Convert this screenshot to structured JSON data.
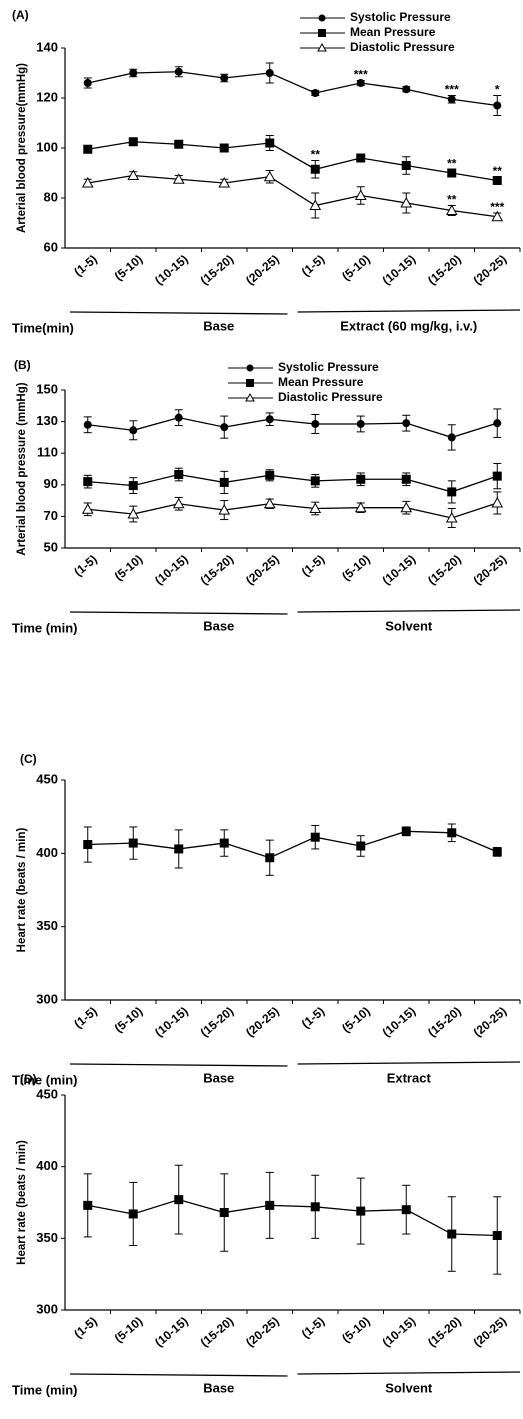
{
  "chart_data": [
    {
      "type": "line",
      "label": "(A)",
      "ylabel": "Arterial blood pressure(mmHg)",
      "categories": [
        "(1-5)",
        "(5-10)",
        "(10-15)",
        "(15-20)",
        "(20-25)",
        "(1-5)",
        "(5-10)",
        "(10-15)",
        "(15-20)",
        "(20-25)"
      ],
      "ylim": [
        60,
        140
      ],
      "yticks": [
        60,
        80,
        100,
        120,
        140
      ],
      "xlabel": "Time(min)",
      "groups": [
        "Base",
        "Extract (60 mg/kg, i.v.)"
      ],
      "series": [
        {
          "name": "Systolic Pressure",
          "color": "#000000",
          "marker": "circle",
          "values": [
            126,
            130,
            130.5,
            128,
            130,
            122,
            126,
            123.5,
            119.5,
            117
          ],
          "errors": [
            2,
            1.5,
            2,
            1.5,
            4,
            1,
            1,
            1,
            1.5,
            4
          ],
          "significance": [
            null,
            null,
            null,
            null,
            null,
            null,
            "***",
            null,
            "***",
            "*"
          ]
        },
        {
          "name": "Mean Pressure",
          "color": "#000000",
          "marker": "square",
          "values": [
            99.5,
            102.5,
            101.5,
            100,
            102,
            91.5,
            96,
            93,
            90,
            87
          ],
          "errors": [
            1.5,
            1.5,
            1.5,
            1.5,
            3,
            3.5,
            1.5,
            3.5,
            1.5,
            1.5
          ],
          "significance": [
            null,
            null,
            null,
            null,
            null,
            "**",
            null,
            null,
            "**",
            "**"
          ]
        },
        {
          "name": "Diastolic Pressure",
          "color": "#000000",
          "marker": "triangle",
          "values": [
            86,
            89,
            87.5,
            86,
            88.5,
            77,
            81,
            78,
            75,
            72.5
          ],
          "errors": [
            1.5,
            1.5,
            1.5,
            1.5,
            2.5,
            5,
            3.5,
            4,
            2,
            1.5
          ],
          "significance": [
            null,
            null,
            null,
            null,
            null,
            null,
            null,
            null,
            "**",
            "***"
          ]
        }
      ]
    },
    {
      "type": "line",
      "label": "(B)",
      "ylabel": "Arterial blood pressure (mmHg)",
      "categories": [
        "(1-5)",
        "(5-10)",
        "(10-15)",
        "(15-20)",
        "(20-25)",
        "(1-5)",
        "(5-10)",
        "(10-15)",
        "(15-20)",
        "(20-25)"
      ],
      "ylim": [
        50,
        150
      ],
      "yticks": [
        50,
        70,
        90,
        110,
        130,
        150
      ],
      "xlabel": "Time (min)",
      "groups": [
        "Base",
        "Solvent"
      ],
      "series": [
        {
          "name": "Systolic Pressure",
          "color": "#000000",
          "marker": "circle",
          "values": [
            128,
            124.5,
            132.5,
            126.5,
            131.5,
            128.5,
            128.5,
            129,
            120,
            129
          ],
          "errors": [
            5,
            6,
            5,
            7,
            4,
            6,
            5,
            5,
            8,
            9
          ]
        },
        {
          "name": "Mean Pressure",
          "color": "#000000",
          "marker": "square",
          "values": [
            92,
            89.5,
            96.5,
            91.5,
            96,
            92.5,
            93.5,
            93.5,
            85.5,
            95.5
          ],
          "errors": [
            4,
            5,
            4,
            7,
            3.5,
            4,
            4,
            4,
            7,
            8
          ]
        },
        {
          "name": "Diastolic Pressure",
          "color": "#000000",
          "marker": "triangle",
          "values": [
            74.5,
            71.5,
            78,
            74,
            78,
            75,
            75.5,
            75.5,
            69,
            78.5
          ],
          "errors": [
            4,
            5,
            4,
            6,
            3,
            4,
            3,
            4,
            6,
            7
          ]
        }
      ]
    },
    {
      "type": "line",
      "label": "(C)",
      "ylabel": "Heart rate (beats / min)",
      "categories": [
        "(1-5)",
        "(5-10)",
        "(10-15)",
        "(15-20)",
        "(20-25)",
        "(1-5)",
        "(5-10)",
        "(10-15)",
        "(15-20)",
        "(20-25)"
      ],
      "ylim": [
        300,
        450
      ],
      "yticks": [
        300,
        350,
        400,
        450
      ],
      "xlabel": "Time (min)",
      "groups": [
        "Base",
        "Extract"
      ],
      "color": "#000000",
      "marker": "square",
      "values": [
        406,
        407,
        403,
        407,
        397,
        411,
        405,
        415,
        414,
        401
      ],
      "errors": [
        12,
        11,
        13,
        9,
        12,
        8,
        7,
        3,
        6,
        3
      ]
    },
    {
      "type": "line",
      "label": "(D)",
      "ylabel": "Heart rate (beats / min)",
      "categories": [
        "(1-5)",
        "(5-10)",
        "(10-15)",
        "(15-20)",
        "(20-25)",
        "(1-5)",
        "(5-10)",
        "(10-15)",
        "(15-20)",
        "(20-25)"
      ],
      "ylim": [
        300,
        450
      ],
      "yticks": [
        300,
        350,
        400,
        450
      ],
      "xlabel": "Time (min)",
      "groups": [
        "Base",
        "Solvent"
      ],
      "color": "#000000",
      "marker": "square",
      "values": [
        373,
        367,
        377,
        368,
        373,
        372,
        369,
        370,
        353,
        352
      ],
      "errors": [
        22,
        22,
        24,
        27,
        23,
        22,
        23,
        17,
        26,
        27
      ]
    }
  ]
}
